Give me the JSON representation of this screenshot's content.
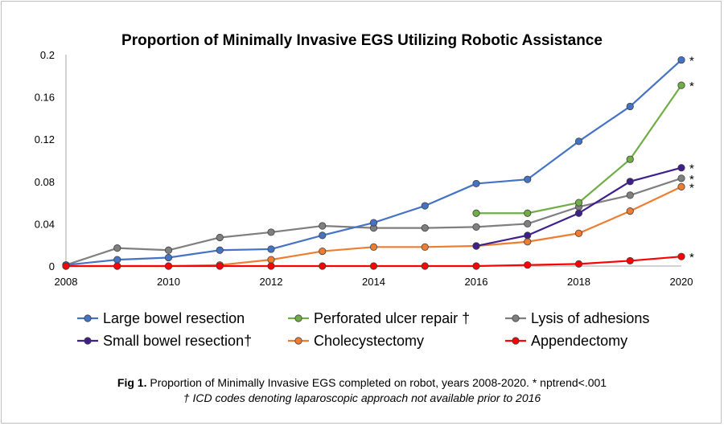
{
  "chart_data": {
    "type": "line",
    "title": "Proportion of Minimally Invasive EGS Utilizing Robotic Assistance",
    "xlabel": "",
    "ylabel": "",
    "x": [
      2008,
      2009,
      2010,
      2011,
      2012,
      2013,
      2014,
      2015,
      2016,
      2017,
      2018,
      2019,
      2020
    ],
    "x_ticks": [
      "2008",
      "2010",
      "2012",
      "2014",
      "2016",
      "2018",
      "2020"
    ],
    "y_ticks": [
      "0",
      "0.04",
      "0.08",
      "0.12",
      "0.16",
      "0.2"
    ],
    "xlim": [
      2008,
      2020
    ],
    "ylim": [
      0,
      0.2
    ],
    "grid": false,
    "legend_placement": "bottom",
    "significance_marker": "*",
    "series": [
      {
        "name": "Large bowel resection",
        "color": "#4472C4",
        "values": [
          0.001,
          0.006,
          0.008,
          0.015,
          0.016,
          0.029,
          0.041,
          0.057,
          0.078,
          0.082,
          0.118,
          0.151,
          0.195
        ],
        "significant": true
      },
      {
        "name": "Perforated ulcer repair †",
        "color": "#70AD47",
        "values": [
          null,
          null,
          null,
          null,
          null,
          null,
          null,
          null,
          0.05,
          0.05,
          0.06,
          0.101,
          0.171
        ],
        "significant": true
      },
      {
        "name": "Lysis of adhesions",
        "color": "#7F7F7F",
        "values": [
          0.001,
          0.017,
          0.015,
          0.027,
          0.032,
          0.038,
          0.036,
          0.036,
          0.037,
          0.04,
          0.056,
          0.067,
          0.083
        ],
        "significant": true
      },
      {
        "name": "Small bowel resection†",
        "color": "#3E1F8C",
        "values": [
          null,
          null,
          null,
          null,
          null,
          null,
          null,
          null,
          0.019,
          0.029,
          0.05,
          0.08,
          0.093
        ],
        "significant": true
      },
      {
        "name": "Cholecystectomy",
        "color": "#ED7D31",
        "values": [
          0.0,
          0.0,
          0.0,
          0.001,
          0.006,
          0.014,
          0.018,
          0.018,
          0.019,
          0.023,
          0.031,
          0.052,
          0.075
        ],
        "significant": true
      },
      {
        "name": "Appendectomy",
        "color": "#FF0000",
        "values": [
          0.0,
          0.0,
          0.0,
          0.0,
          0.0,
          0.0,
          0.0,
          0.0,
          0.0,
          0.001,
          0.002,
          0.005,
          0.009
        ],
        "significant": true
      }
    ]
  },
  "caption": {
    "label": "Fig 1.",
    "line1": " Proportion of Minimally Invasive EGS completed on robot, years 2008-2020.  * nptrend<.001",
    "line2": "† ICD codes denoting laparoscopic approach not available prior to 2016"
  }
}
